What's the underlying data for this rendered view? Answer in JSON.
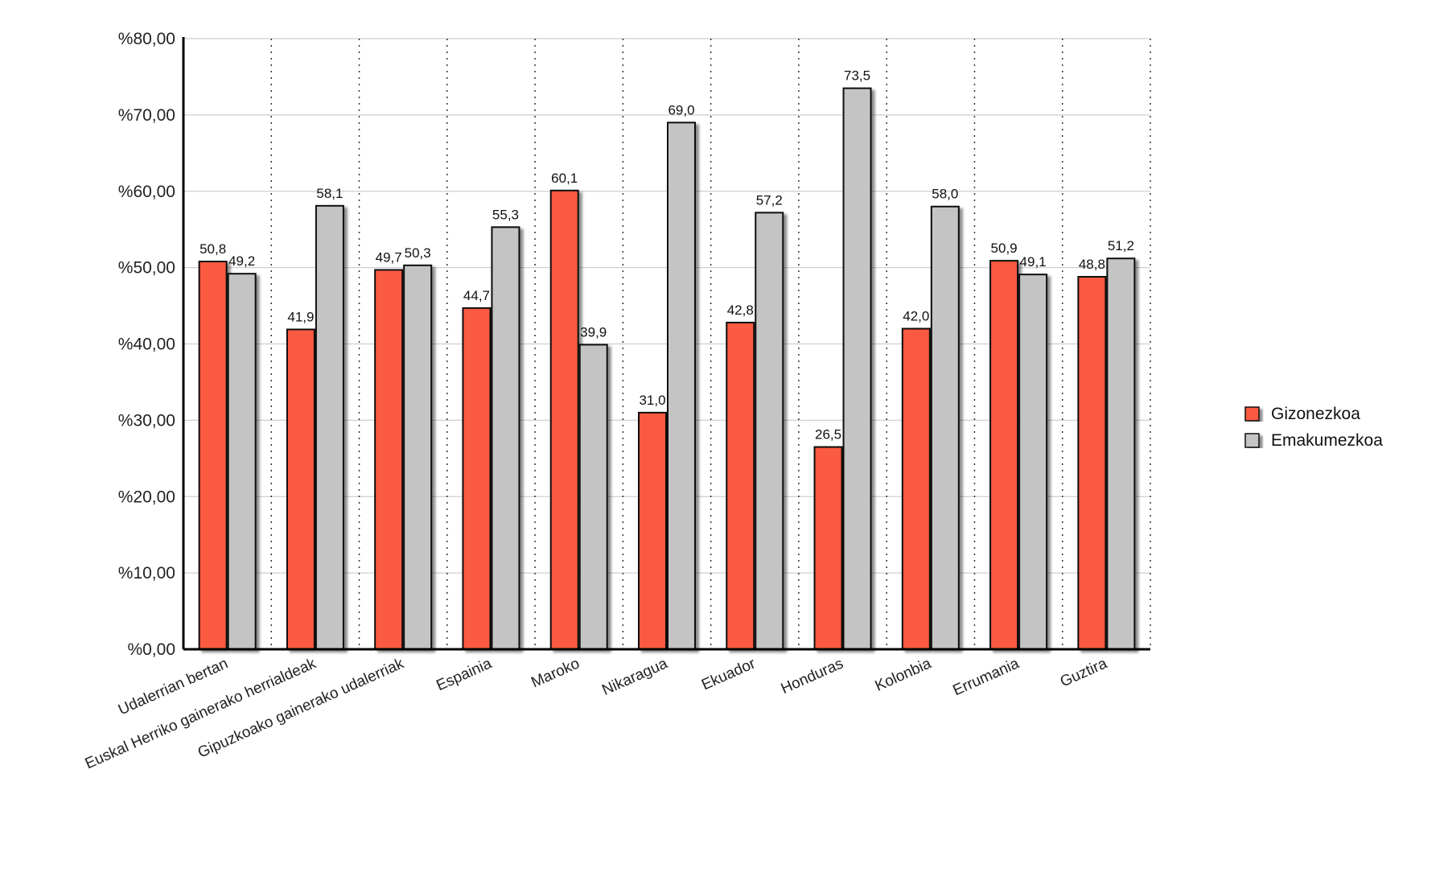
{
  "chart_data": {
    "type": "bar",
    "title": "",
    "xlabel": "",
    "ylabel": "",
    "ylim": [
      0,
      80
    ],
    "yticks": [
      0,
      10,
      20,
      30,
      40,
      50,
      60,
      70,
      80
    ],
    "ytick_labels": [
      "%0,00",
      "%10,00",
      "%20,00",
      "%30,00",
      "%40,00",
      "%50,00",
      "%60,00",
      "%70,00",
      "%80,00"
    ],
    "grid": true,
    "legend_position": "right",
    "categories": [
      "Udalerrian bertan",
      "Euskal Herriko gainerako herrialdeak",
      "Gipuzkoako gainerako udalerriak",
      "Espainia",
      "Maroko",
      "Nikaragua",
      "Ekuador",
      "Honduras",
      "Kolonbia",
      "Errumania",
      "Guztira"
    ],
    "series": [
      {
        "name": "Gizonezkoa",
        "color": "#f95a40",
        "values": [
          50.8,
          41.9,
          49.7,
          44.7,
          60.1,
          31.0,
          42.8,
          26.5,
          42.0,
          50.9,
          48.8
        ],
        "labels": [
          "50,8",
          "41,9",
          "49,7",
          "44,7",
          "60,1",
          "31,0",
          "42,8",
          "26,5",
          "42,0",
          "50,9",
          "48,8"
        ]
      },
      {
        "name": "Emakumezkoa",
        "color": "#c4c4c4",
        "values": [
          49.2,
          58.1,
          50.3,
          55.3,
          39.9,
          69.0,
          57.2,
          73.5,
          58.0,
          49.1,
          51.2
        ],
        "labels": [
          "49,2",
          "58,1",
          "50,3",
          "55,3",
          "39,9",
          "69,0",
          "57,2",
          "73,5",
          "58,0",
          "49,1",
          "51,2"
        ]
      }
    ]
  }
}
